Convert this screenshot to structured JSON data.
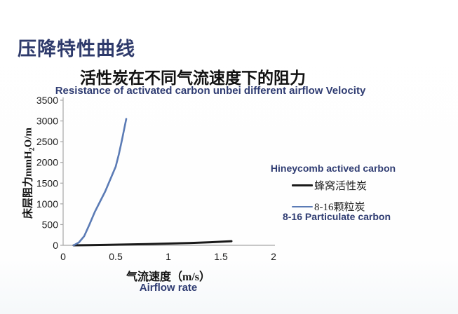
{
  "page": {
    "title": "压降特性曲线"
  },
  "chart_data": {
    "type": "line",
    "title": "活性炭在不同气流速度下的阻力",
    "subtitle": "Resistance of activated carbon unbei different airflow Velocity",
    "xlabel": "气流速度（m/s）",
    "xlabel_en": "Airflow rate",
    "ylabel_prefix": "床层阻力mmH",
    "ylabel_sub": "2",
    "ylabel_suffix": "O/m",
    "xlim": [
      0,
      2
    ],
    "ylim": [
      0,
      3500
    ],
    "x_ticks": [
      0,
      0.5,
      1,
      1.5,
      2
    ],
    "y_ticks": [
      0,
      500,
      1000,
      1500,
      2000,
      2500,
      3000,
      3500
    ],
    "grid": false,
    "legend_position": "right",
    "axis_color": "#a6a6a6",
    "tick_label_color": "#1a1a1a",
    "series": [
      {
        "name": "蜂窝活性炭",
        "name_en": "Hineycomb actived carbon",
        "color": "#1a1a1a",
        "stroke_width": 3,
        "points": [
          [
            0.1,
            0
          ],
          [
            0.4,
            10
          ],
          [
            0.8,
            30
          ],
          [
            1.2,
            55
          ],
          [
            1.4,
            75
          ],
          [
            1.6,
            100
          ]
        ]
      },
      {
        "name": "8-16颗粒炭",
        "name_en": "8-16 Particulate carbon",
        "color": "#5b7bb5",
        "stroke_width": 2.6,
        "points": [
          [
            0.1,
            0
          ],
          [
            0.15,
            70
          ],
          [
            0.2,
            220
          ],
          [
            0.25,
            500
          ],
          [
            0.3,
            800
          ],
          [
            0.35,
            1050
          ],
          [
            0.4,
            1300
          ],
          [
            0.45,
            1600
          ],
          [
            0.5,
            1900
          ],
          [
            0.53,
            2200
          ],
          [
            0.56,
            2550
          ],
          [
            0.58,
            2800
          ],
          [
            0.6,
            3050
          ]
        ]
      }
    ]
  }
}
